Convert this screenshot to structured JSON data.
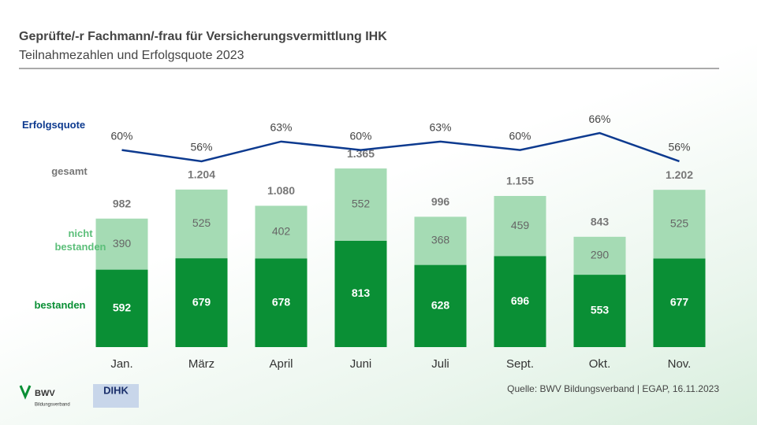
{
  "chart_data": {
    "type": "bar",
    "stacked": true,
    "title": "Geprüfte/-r Fachmann/-frau für Versicherungsvermittlung IHK",
    "subtitle": "Teilnahmezahlen und Erfolgsquote 2023",
    "categories": [
      "Jan.",
      "März",
      "April",
      "Juni",
      "Juli",
      "Sept.",
      "Okt.",
      "Nov."
    ],
    "series": [
      {
        "name": "bestanden",
        "color": "#0a8f35",
        "values": [
          592,
          679,
          678,
          813,
          628,
          696,
          553,
          677
        ]
      },
      {
        "name": "nicht bestanden",
        "color": "#a5dbb4",
        "values": [
          390,
          525,
          402,
          552,
          368,
          459,
          290,
          525
        ]
      }
    ],
    "totals": {
      "name": "gesamt",
      "values": [
        982,
        1204,
        1080,
        1365,
        996,
        1155,
        843,
        1202
      ],
      "value_labels": [
        "982",
        "1.204",
        "1.080",
        "1.365",
        "996",
        "1.155",
        "843",
        "1.202"
      ]
    },
    "line": {
      "name": "Erfolgsquote",
      "color": "#0d3a8f",
      "axis": "y2",
      "values": [
        60,
        56,
        63,
        60,
        63,
        60,
        66,
        56
      ],
      "value_labels": [
        "60%",
        "56%",
        "63%",
        "60%",
        "63%",
        "60%",
        "66%",
        "56%"
      ]
    },
    "ylim": [
      0,
      1600
    ],
    "y2lim": [
      0,
      100
    ],
    "source": "Quelle: BWV Bildungsverband  | EGAP, 16.11.2023",
    "logos": {
      "bwv": "BWV",
      "bwv_sub": "Bildungsverband",
      "dihk": "DIHK"
    }
  }
}
